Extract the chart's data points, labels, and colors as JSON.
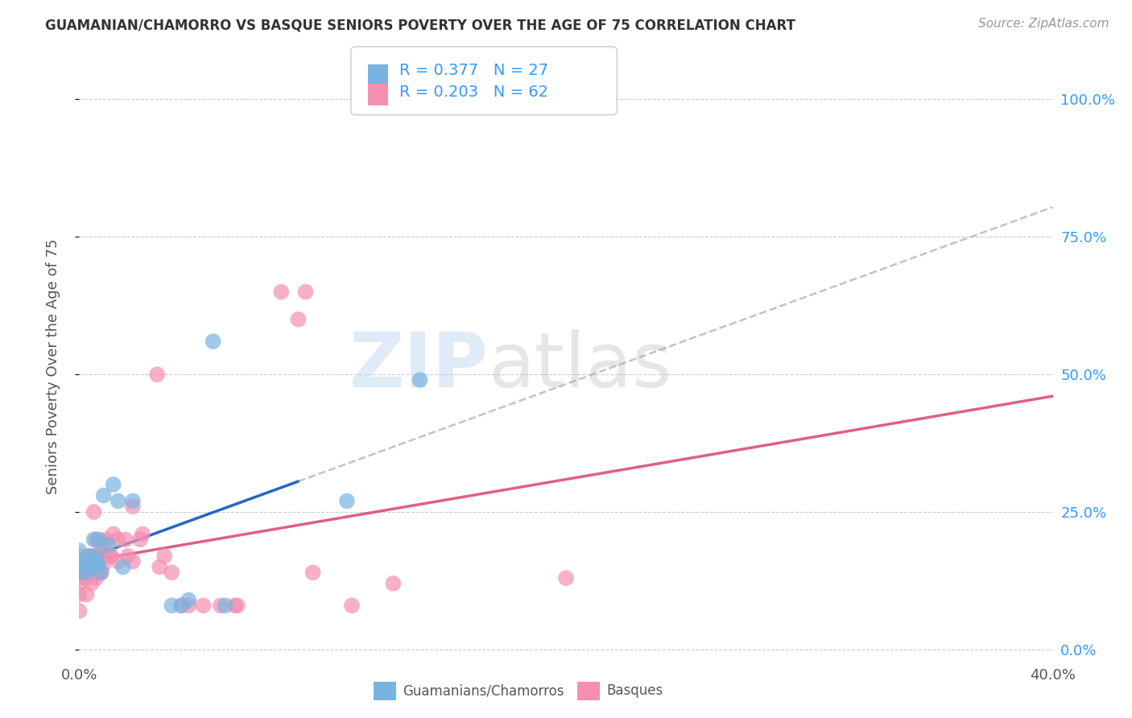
{
  "title": "GUAMANIAN/CHAMORRO VS BASQUE SENIORS POVERTY OVER THE AGE OF 75 CORRELATION CHART",
  "source": "Source: ZipAtlas.com",
  "ylabel": "Seniors Poverty Over the Age of 75",
  "xlim": [
    0.0,
    0.4
  ],
  "ylim": [
    -0.02,
    1.05
  ],
  "xticks": [
    0.0,
    0.05,
    0.1,
    0.15,
    0.2,
    0.25,
    0.3,
    0.35,
    0.4
  ],
  "ytick_labels_right": [
    "0.0%",
    "25.0%",
    "50.0%",
    "75.0%",
    "100.0%"
  ],
  "yticks_right": [
    0.0,
    0.25,
    0.5,
    0.75,
    1.0
  ],
  "watermark_zip": "ZIP",
  "watermark_atlas": "atlas",
  "guamanian_color": "#7ab3e0",
  "basque_color": "#f48fb1",
  "guamanian_line_color": "#2266cc",
  "basque_line_color": "#e06080",
  "guamanian_dash_color": "#aaccee",
  "guamanian_R": 0.377,
  "guamanian_N": 27,
  "basque_R": 0.203,
  "basque_N": 62,
  "guamanian_x": [
    0.0,
    0.0,
    0.0,
    0.003,
    0.003,
    0.004,
    0.005,
    0.005,
    0.006,
    0.007,
    0.007,
    0.008,
    0.008,
    0.009,
    0.01,
    0.012,
    0.014,
    0.016,
    0.018,
    0.022,
    0.038,
    0.042,
    0.045,
    0.055,
    0.06,
    0.11,
    0.14
  ],
  "guamanian_y": [
    0.14,
    0.16,
    0.18,
    0.14,
    0.16,
    0.17,
    0.15,
    0.16,
    0.2,
    0.15,
    0.17,
    0.2,
    0.155,
    0.14,
    0.28,
    0.19,
    0.3,
    0.27,
    0.15,
    0.27,
    0.08,
    0.08,
    0.09,
    0.56,
    0.08,
    0.27,
    0.49
  ],
  "basque_x": [
    0.0,
    0.0,
    0.0,
    0.0,
    0.0,
    0.0,
    0.0,
    0.0,
    0.001,
    0.002,
    0.002,
    0.003,
    0.003,
    0.003,
    0.004,
    0.004,
    0.004,
    0.005,
    0.005,
    0.005,
    0.006,
    0.006,
    0.006,
    0.006,
    0.007,
    0.007,
    0.007,
    0.008,
    0.008,
    0.009,
    0.009,
    0.01,
    0.01,
    0.011,
    0.013,
    0.013,
    0.014,
    0.016,
    0.016,
    0.019,
    0.02,
    0.022,
    0.022,
    0.025,
    0.026,
    0.032,
    0.033,
    0.035,
    0.038,
    0.042,
    0.045,
    0.051,
    0.058,
    0.064,
    0.065,
    0.083,
    0.09,
    0.093,
    0.096,
    0.112,
    0.129,
    0.2
  ],
  "basque_y": [
    0.07,
    0.1,
    0.12,
    0.13,
    0.14,
    0.15,
    0.16,
    0.17,
    0.15,
    0.14,
    0.16,
    0.13,
    0.1,
    0.14,
    0.155,
    0.14,
    0.17,
    0.12,
    0.17,
    0.14,
    0.14,
    0.17,
    0.15,
    0.25,
    0.13,
    0.16,
    0.2,
    0.15,
    0.14,
    0.14,
    0.18,
    0.155,
    0.19,
    0.2,
    0.17,
    0.17,
    0.21,
    0.2,
    0.16,
    0.2,
    0.17,
    0.26,
    0.16,
    0.2,
    0.21,
    0.5,
    0.15,
    0.17,
    0.14,
    0.08,
    0.08,
    0.08,
    0.08,
    0.08,
    0.08,
    0.65,
    0.6,
    0.65,
    0.14,
    0.08,
    0.12,
    0.13
  ],
  "background_color": "#ffffff",
  "grid_color": "#cccccc"
}
